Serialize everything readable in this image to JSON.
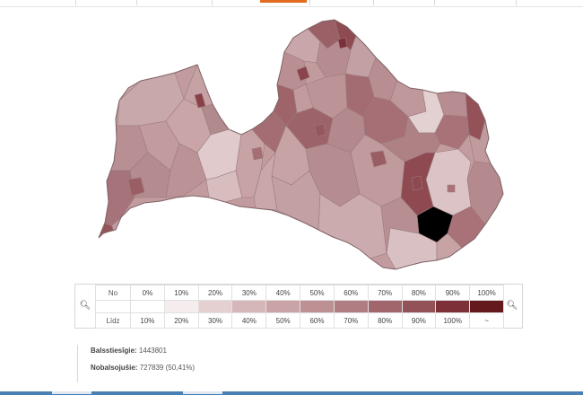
{
  "colors": {
    "accent_top": "#e36b1e",
    "taskbar": "#4a7fb6",
    "scale": [
      "#ffffff",
      "#f5eded",
      "#e5d0d1",
      "#d6b7b9",
      "#c9a3a6",
      "#bd9094",
      "#b07d82",
      "#a1666c",
      "#935257",
      "#7d3038",
      "#641a1c"
    ]
  },
  "legend": {
    "from_label": "No",
    "to_label": "Līdz",
    "from_values": [
      "0%",
      "10%",
      "20%",
      "30%",
      "40%",
      "50%",
      "60%",
      "70%",
      "80%",
      "90%",
      "100%"
    ],
    "to_values": [
      "10%",
      "20%",
      "30%",
      "40%",
      "50%",
      "60%",
      "70%",
      "80%",
      "90%",
      "100%",
      "~"
    ],
    "zoom_out_icon": "zoom-out-icon",
    "zoom_in_icon": "zoom-in-icon"
  },
  "summary": {
    "eligible_label": "Balsstiesīgie:",
    "eligible_value": "1443801",
    "voted_label": "Nobalsojušie:",
    "voted_value": "727839 (50,41%)"
  }
}
